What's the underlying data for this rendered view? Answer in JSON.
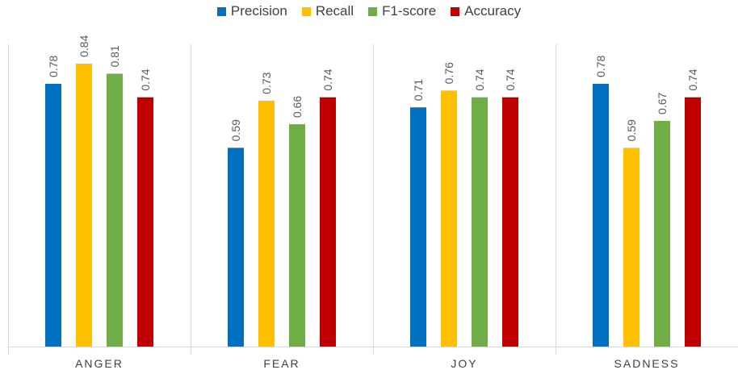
{
  "chart_data": {
    "type": "bar",
    "categories": [
      "ANGER",
      "FEAR",
      "JOY",
      "SADNESS"
    ],
    "series": [
      {
        "name": "Precision",
        "color": "#0070c0",
        "values": [
          0.78,
          0.59,
          0.71,
          0.78
        ]
      },
      {
        "name": "Recall",
        "color": "#ffc000",
        "values": [
          0.84,
          0.73,
          0.76,
          0.59
        ]
      },
      {
        "name": "F1-score",
        "color": "#70ad47",
        "values": [
          0.81,
          0.66,
          0.74,
          0.67
        ]
      },
      {
        "name": "Accuracy",
        "color": "#c00000",
        "values": [
          0.74,
          0.74,
          0.74,
          0.74
        ]
      }
    ],
    "data_labels": [
      [
        "0.78",
        "0.59",
        "0.71",
        "0.78"
      ],
      [
        "0.84",
        "0.73",
        "0.76",
        "0.59"
      ],
      [
        "0.81",
        "0.66",
        "0.74",
        "0.67"
      ],
      [
        "0.74",
        "0.74",
        "0.74",
        "0.74"
      ]
    ],
    "ylim": [
      0,
      1
    ],
    "grid": false,
    "legend_position": "top-center"
  }
}
